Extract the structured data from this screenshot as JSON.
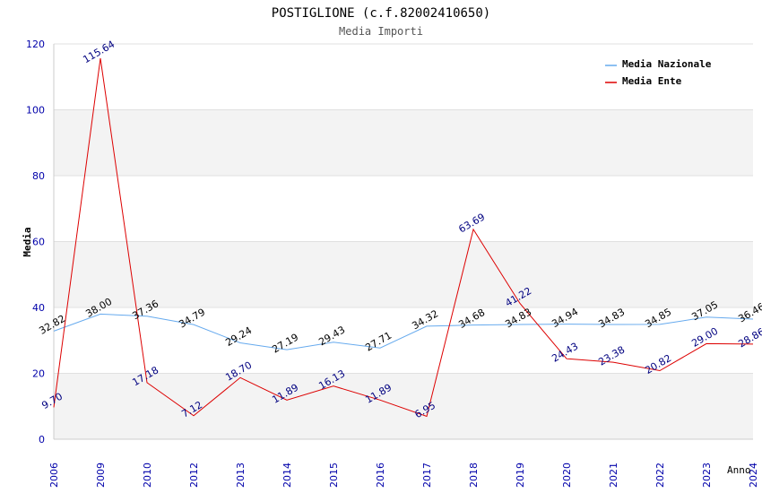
{
  "chart_data": {
    "type": "line",
    "title": "POSTIGLIONE (c.f.82002410650)",
    "subtitle": "Media Importi",
    "xlabel": "Anno",
    "ylabel": "Media",
    "ylim": [
      0,
      120
    ],
    "yticks": [
      0,
      20,
      40,
      60,
      80,
      100,
      120
    ],
    "categories": [
      "2006",
      "2009",
      "2010",
      "2012",
      "2013",
      "2014",
      "2015",
      "2016",
      "2017",
      "2018",
      "2019",
      "2020",
      "2021",
      "2022",
      "2023",
      "2024"
    ],
    "series": [
      {
        "name": "Media Nazionale",
        "color": "#66aaee",
        "values": [
          32.82,
          38.0,
          37.36,
          34.79,
          29.24,
          27.19,
          29.43,
          27.71,
          34.32,
          34.68,
          34.83,
          34.94,
          34.83,
          34.85,
          37.05,
          36.46
        ],
        "labels": [
          "32.82",
          "38.00",
          "37.36",
          "34.79",
          "29.24",
          "27.19",
          "29.43",
          "27.71",
          "34.32",
          "34.68",
          "34.83",
          "34.94",
          "34.83",
          "34.85",
          "37.05",
          "36.46"
        ]
      },
      {
        "name": "Media Ente",
        "color": "#dd0000",
        "values": [
          9.7,
          115.64,
          17.18,
          7.12,
          18.7,
          11.89,
          16.13,
          11.89,
          6.95,
          63.69,
          41.22,
          24.43,
          23.38,
          20.82,
          29.0,
          28.86
        ],
        "labels": [
          "9.70",
          "115.64",
          "17.18",
          "7.12",
          "18.70",
          "11.89",
          "16.13",
          "11.89",
          "6.95",
          "63.69",
          "41.22",
          "24.43",
          "23.38",
          "20.82",
          "29.00",
          "28.86"
        ]
      }
    ],
    "grid": true,
    "banded_background": true,
    "legend_position": "top-right"
  }
}
